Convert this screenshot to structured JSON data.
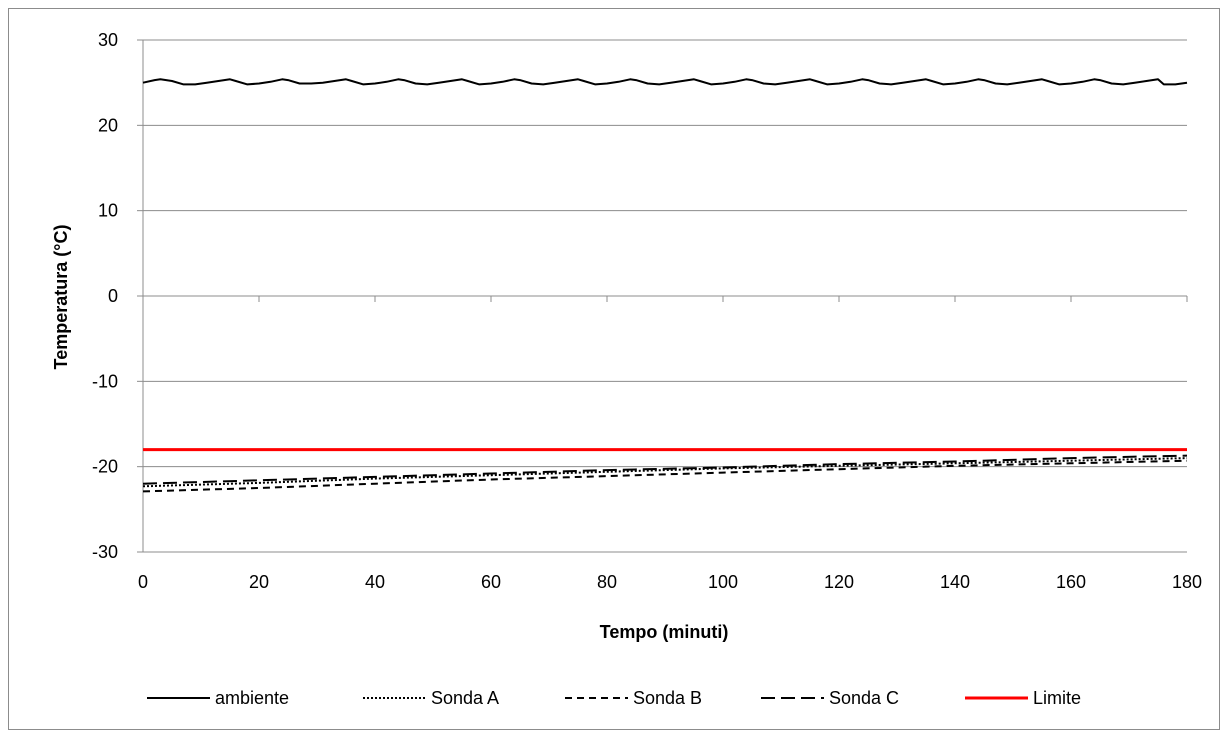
{
  "chart_data": {
    "type": "line",
    "xlabel": "Tempo (minuti)",
    "ylabel": "Temperatura (°C)",
    "xlim": [
      0,
      180
    ],
    "ylim": [
      -30,
      30
    ],
    "xticks": [
      0,
      20,
      40,
      60,
      80,
      100,
      120,
      140,
      160,
      180
    ],
    "yticks": [
      30,
      20,
      10,
      0,
      -10,
      -20,
      -30
    ],
    "xtick_labels": [
      "0",
      "20",
      "40",
      "60",
      "80",
      "100",
      "120",
      "140",
      "160",
      "180"
    ],
    "ytick_labels": [
      "30",
      "20",
      "10",
      "0",
      "-10",
      "-20",
      "-30"
    ],
    "grid": "horizontal",
    "legend_position": "bottom",
    "series": [
      {
        "name": "ambiente",
        "style": "solid",
        "color": "#000000",
        "x": [
          0,
          2,
          3,
          5,
          7,
          9,
          11,
          13,
          15,
          16,
          18,
          20,
          22,
          24,
          25,
          27,
          29,
          31,
          33,
          35,
          36,
          38,
          40,
          42,
          44,
          45,
          47,
          49,
          51,
          53,
          55,
          56,
          58,
          60,
          62,
          64,
          65,
          67,
          69,
          71,
          73,
          75,
          76,
          78,
          80,
          82,
          84,
          85,
          87,
          89,
          91,
          93,
          95,
          96,
          98,
          100,
          102,
          104,
          105,
          107,
          109,
          111,
          113,
          115,
          116,
          118,
          120,
          122,
          124,
          125,
          127,
          129,
          131,
          133,
          135,
          136,
          138,
          140,
          142,
          144,
          145,
          147,
          149,
          151,
          153,
          155,
          156,
          158,
          160,
          162,
          164,
          165,
          167,
          169,
          171,
          173,
          175,
          176,
          178,
          180
        ],
        "y": [
          25.0,
          25.3,
          25.4,
          25.2,
          24.8,
          24.8,
          25.0,
          25.2,
          25.4,
          25.2,
          24.8,
          24.9,
          25.1,
          25.4,
          25.3,
          24.9,
          24.9,
          25.0,
          25.2,
          25.4,
          25.2,
          24.8,
          24.9,
          25.1,
          25.4,
          25.3,
          24.9,
          24.8,
          25.0,
          25.2,
          25.4,
          25.2,
          24.8,
          24.9,
          25.1,
          25.4,
          25.3,
          24.9,
          24.8,
          25.0,
          25.2,
          25.4,
          25.2,
          24.8,
          24.9,
          25.1,
          25.4,
          25.3,
          24.9,
          24.8,
          25.0,
          25.2,
          25.4,
          25.2,
          24.8,
          24.9,
          25.1,
          25.4,
          25.3,
          24.9,
          24.8,
          25.0,
          25.2,
          25.4,
          25.2,
          24.8,
          24.9,
          25.1,
          25.4,
          25.3,
          24.9,
          24.8,
          25.0,
          25.2,
          25.4,
          25.2,
          24.8,
          24.9,
          25.1,
          25.4,
          25.3,
          24.9,
          24.8,
          25.0,
          25.2,
          25.4,
          25.2,
          24.8,
          24.9,
          25.1,
          25.4,
          25.3,
          24.9,
          24.8,
          25.0,
          25.2,
          25.4,
          24.8,
          24.8,
          25.0
        ]
      },
      {
        "name": "Sonda A",
        "style": "dotted",
        "color": "#000000",
        "x": [
          0,
          20,
          40,
          60,
          80,
          100,
          120,
          140,
          160,
          180
        ],
        "y": [
          -22.3,
          -21.9,
          -21.4,
          -21.0,
          -20.6,
          -20.2,
          -19.9,
          -19.6,
          -19.3,
          -19.0
        ]
      },
      {
        "name": "Sonda B",
        "style": "dashed",
        "color": "#000000",
        "x": [
          0,
          20,
          40,
          60,
          80,
          100,
          120,
          140,
          160,
          180
        ],
        "y": [
          -22.9,
          -22.5,
          -22.0,
          -21.5,
          -21.1,
          -20.7,
          -20.3,
          -19.9,
          -19.6,
          -19.3
        ]
      },
      {
        "name": "Sonda C",
        "style": "long-dash",
        "color": "#000000",
        "x": [
          0,
          20,
          40,
          60,
          80,
          100,
          120,
          140,
          160,
          180
        ],
        "y": [
          -22.0,
          -21.6,
          -21.2,
          -20.8,
          -20.4,
          -20.1,
          -19.7,
          -19.4,
          -19.0,
          -18.7
        ]
      },
      {
        "name": "Limite",
        "style": "solid",
        "color": "#ff0000",
        "x": [
          0,
          180
        ],
        "y": [
          -18.0,
          -18.0
        ]
      }
    ]
  }
}
